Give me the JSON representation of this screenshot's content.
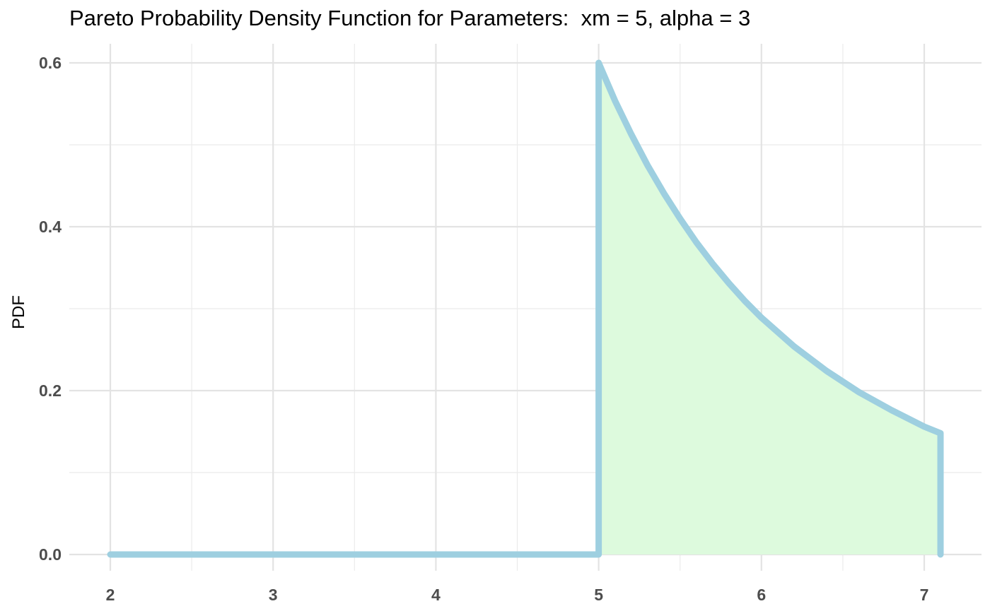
{
  "chart_data": {
    "type": "area",
    "title": "Pareto Probability Density Function for Parameters:  xm = 5, alpha = 3",
    "xlabel": "",
    "ylabel": "PDF",
    "xlim": [
      2,
      7.1
    ],
    "ylim": [
      0,
      0.6
    ],
    "x_ticks": [
      2,
      3,
      4,
      5,
      6,
      7
    ],
    "x_tick_labels": [
      "2",
      "3",
      "4",
      "5",
      "6",
      "7"
    ],
    "y_ticks": [
      0.0,
      0.2,
      0.4,
      0.6
    ],
    "y_tick_labels": [
      "0.0",
      "0.2",
      "0.4",
      "0.6"
    ],
    "grid": true,
    "distribution": {
      "name": "Pareto",
      "xm": 5,
      "alpha": 3
    },
    "series": [
      {
        "x": [
          2,
          3,
          4,
          5,
          5,
          5.1,
          5.2,
          5.3,
          5.4,
          5.5,
          5.6,
          5.7,
          5.8,
          5.9,
          6.0,
          6.2,
          6.4,
          6.6,
          6.8,
          7.0,
          7.1,
          7.1
        ],
        "y": [
          0,
          0,
          0,
          0,
          0.6,
          0.554,
          0.513,
          0.475,
          0.441,
          0.41,
          0.381,
          0.355,
          0.331,
          0.309,
          0.289,
          0.254,
          0.224,
          0.198,
          0.176,
          0.156,
          0.148,
          0
        ],
        "line_color": "#9ecfe0",
        "fill_color": "#ddfadd",
        "fill_range": [
          5,
          7.1
        ]
      }
    ]
  }
}
